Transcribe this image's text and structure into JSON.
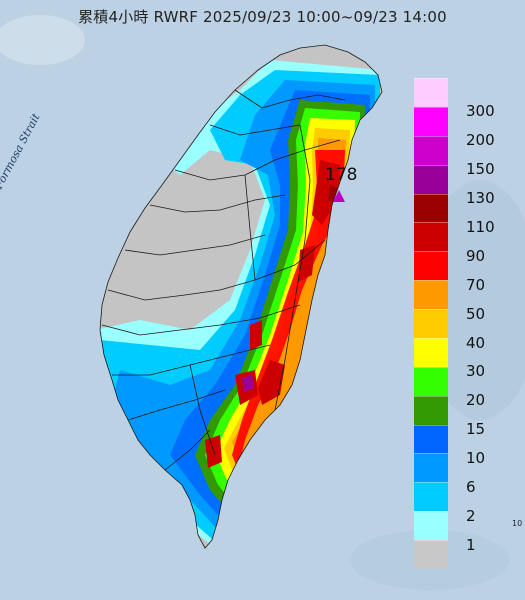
{
  "title": "累積4小時 RWRF 2025/09/23 10:00~09/23 14:00",
  "sea_label": "Formosa Strait",
  "max_value_label": "178",
  "edge_label": "10",
  "legend": {
    "levels": [
      "300",
      "200",
      "150",
      "130",
      "110",
      "90",
      "70",
      "50",
      "40",
      "30",
      "20",
      "15",
      "10",
      "6",
      "2",
      "1"
    ],
    "colors": [
      "#ffccff",
      "#ff00ff",
      "#cc00cc",
      "#990099",
      "#990000",
      "#cc0000",
      "#ff0000",
      "#ff9900",
      "#ffcc00",
      "#ffff00",
      "#33ff00",
      "#339900",
      "#0066ff",
      "#0099ff",
      "#00ccff",
      "#99ffff",
      "#c8c8c8"
    ]
  },
  "colors": {
    "sea": "#bcd2e4",
    "land_dry": "#c4c4c4",
    "boundary": "#1a1a1a"
  }
}
